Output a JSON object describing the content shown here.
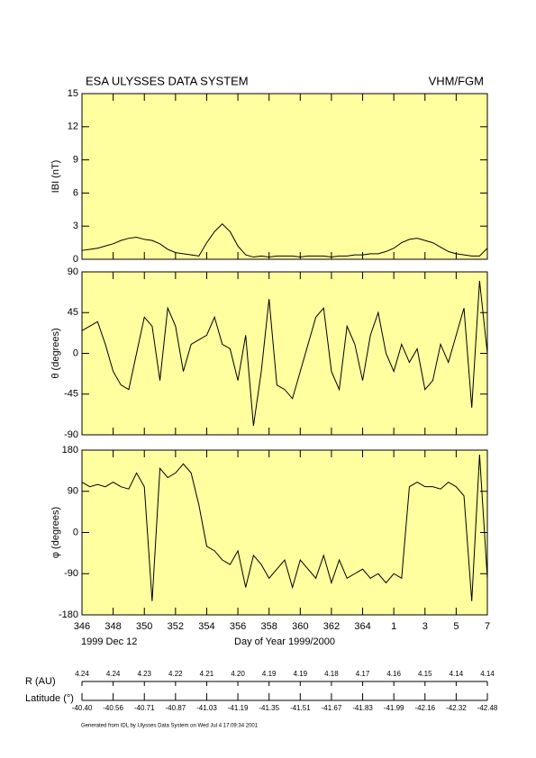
{
  "header": {
    "title": "ESA ULYSSES DATA SYSTEM",
    "instrument": "VHM/FGM"
  },
  "chart_data": [
    {
      "type": "line",
      "y_label": "IBI (nT)",
      "background": "#ffffa0",
      "color": "#000000",
      "x": [
        346,
        346.5,
        347,
        347.5,
        348,
        348.5,
        349,
        349.5,
        350,
        350.5,
        351,
        351.5,
        352,
        352.5,
        353,
        353.5,
        354,
        354.5,
        355,
        355.5,
        356,
        356.5,
        357,
        357.5,
        358,
        358.5,
        359,
        359.5,
        360,
        360.5,
        361,
        361.5,
        362,
        362.5,
        363,
        363.5,
        364,
        364.5,
        365,
        365.5,
        366,
        366.5,
        367,
        367.5,
        368,
        368.5,
        369,
        369.5,
        370,
        370.5,
        371,
        371.5,
        372
      ],
      "values": [
        0.8,
        0.9,
        1.0,
        1.2,
        1.4,
        1.7,
        1.9,
        2.0,
        1.8,
        1.7,
        1.4,
        0.9,
        0.6,
        0.5,
        0.4,
        0.3,
        1.5,
        2.5,
        3.2,
        2.5,
        1.2,
        0.4,
        0.2,
        0.3,
        0.2,
        0.3,
        0.3,
        0.3,
        0.2,
        0.3,
        0.3,
        0.3,
        0.2,
        0.3,
        0.3,
        0.4,
        0.4,
        0.5,
        0.5,
        0.7,
        1.0,
        1.5,
        1.8,
        1.9,
        1.7,
        1.5,
        1.1,
        0.7,
        0.5,
        0.4,
        0.3,
        0.3,
        1.0
      ],
      "xlim": [
        346,
        372
      ],
      "ylim": [
        0,
        15
      ],
      "yticks": [
        0,
        3,
        6,
        9,
        12,
        15
      ]
    },
    {
      "type": "line",
      "y_label": "θ (degrees)",
      "background": "#ffffa0",
      "color": "#000000",
      "x": [
        346,
        346.5,
        347,
        347.5,
        348,
        348.5,
        349,
        349.5,
        350,
        350.5,
        351,
        351.5,
        352,
        352.5,
        353,
        353.5,
        354,
        354.5,
        355,
        355.5,
        356,
        356.5,
        357,
        357.5,
        358,
        358.5,
        359,
        359.5,
        360,
        360.5,
        361,
        361.5,
        362,
        362.5,
        363,
        363.5,
        364,
        364.5,
        365,
        365.5,
        366,
        366.5,
        367,
        367.5,
        368,
        368.5,
        369,
        369.5,
        370,
        370.5,
        371,
        371.5,
        372
      ],
      "values": [
        25,
        30,
        35,
        10,
        -20,
        -35,
        -40,
        0,
        40,
        30,
        -30,
        50,
        30,
        -20,
        10,
        15,
        20,
        40,
        10,
        5,
        -30,
        20,
        -80,
        -20,
        60,
        -35,
        -40,
        -50,
        -20,
        10,
        40,
        50,
        -20,
        -40,
        30,
        10,
        -30,
        20,
        45,
        0,
        -20,
        10,
        -10,
        5,
        -40,
        -30,
        10,
        -10,
        20,
        50,
        -60,
        80,
        0
      ],
      "xlim": [
        346,
        372
      ],
      "ylim": [
        -90,
        90
      ],
      "yticks": [
        -90,
        -45,
        0,
        45,
        90
      ]
    },
    {
      "type": "line",
      "y_label": "φ (degrees)",
      "background": "#ffffa0",
      "color": "#000000",
      "x": [
        346,
        346.5,
        347,
        347.5,
        348,
        348.5,
        349,
        349.5,
        350,
        350.5,
        351,
        351.5,
        352,
        352.5,
        353,
        353.5,
        354,
        354.5,
        355,
        355.5,
        356,
        356.5,
        357,
        357.5,
        358,
        358.5,
        359,
        359.5,
        360,
        360.5,
        361,
        361.5,
        362,
        362.5,
        363,
        363.5,
        364,
        364.5,
        365,
        365.5,
        366,
        366.5,
        367,
        367.5,
        368,
        368.5,
        369,
        369.5,
        370,
        370.5,
        371,
        371.5,
        372
      ],
      "values": [
        110,
        100,
        105,
        100,
        110,
        100,
        95,
        130,
        100,
        -150,
        140,
        120,
        130,
        150,
        130,
        60,
        -30,
        -40,
        -60,
        -70,
        -40,
        -120,
        -50,
        -70,
        -100,
        -80,
        -60,
        -120,
        -60,
        -80,
        -100,
        -50,
        -110,
        -60,
        -100,
        -90,
        -80,
        -100,
        -90,
        -110,
        -90,
        -100,
        100,
        110,
        100,
        100,
        95,
        110,
        100,
        80,
        -150,
        170,
        -100
      ],
      "xlim": [
        346,
        372
      ],
      "ylim": [
        -180,
        180
      ],
      "yticks": [
        -180,
        -90,
        0,
        90,
        180
      ],
      "xticks": [
        346,
        348,
        350,
        352,
        354,
        356,
        358,
        360,
        362,
        364,
        {
          "value": 366,
          "label": "1"
        },
        {
          "value": 368,
          "label": "3"
        },
        {
          "value": 370,
          "label": "5"
        },
        {
          "value": 372,
          "label": "7"
        }
      ],
      "start_date": "1999 Dec 12",
      "x_label": "Day of Year 1999/2000"
    }
  ],
  "ephemeris": {
    "r_label": "R (AU)",
    "r_values": [
      "4.24",
      "4.24",
      "4.23",
      "4.22",
      "4.21",
      "4.20",
      "4.19",
      "4.19",
      "4.18",
      "4.17",
      "4.16",
      "4.15",
      "4.14",
      "4.14"
    ],
    "lat_label": "Latitude (°)",
    "lat_values": [
      "-40.40",
      "-40.56",
      "-40.71",
      "-40.87",
      "-41.03",
      "-41.19",
      "-41.35",
      "-41.51",
      "-41.67",
      "-41.83",
      "-41.99",
      "-42.16",
      "-42.32",
      "-42.48"
    ]
  },
  "footer": "Generated from IDL by Ulysses Data System on Wed Jul 4 17:09:34 2001"
}
